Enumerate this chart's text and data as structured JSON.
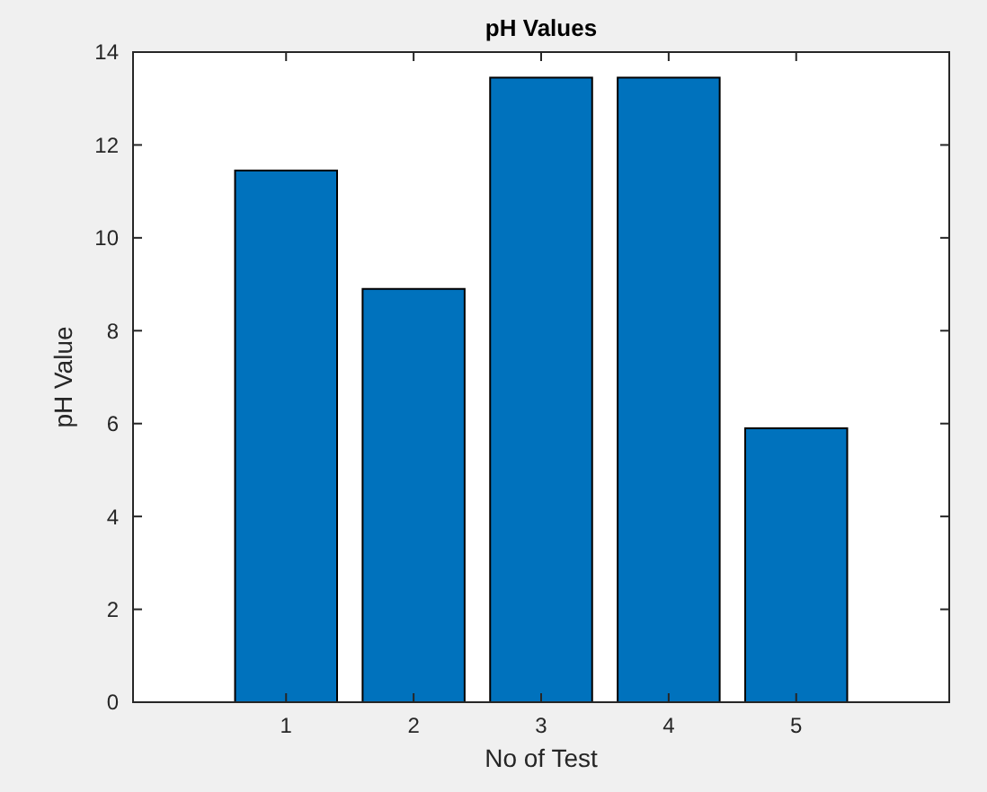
{
  "chart_data": {
    "type": "bar",
    "title": "pH Values",
    "xlabel": "No of  Test",
    "ylabel": "pH Value",
    "x": [
      1,
      2,
      3,
      4,
      5
    ],
    "values": [
      11.45,
      8.9,
      13.45,
      13.45,
      5.9
    ],
    "color": "#0072bd",
    "xlim": [
      -0.2,
      6.2
    ],
    "xticks": [
      1,
      2,
      3,
      4,
      5
    ],
    "ylim": [
      0,
      14
    ],
    "yticks": [
      0,
      2,
      4,
      6,
      8,
      10,
      12,
      14
    ],
    "grid": false
  }
}
